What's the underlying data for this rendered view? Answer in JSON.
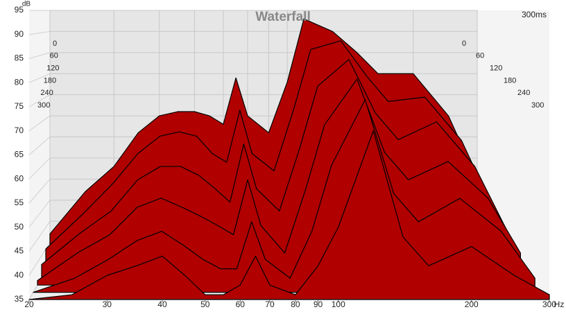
{
  "chart_data": {
    "type": "waterfall",
    "title": "Waterfall",
    "x_label": "Hz",
    "y_label": "dB",
    "time_range_label": "300ms",
    "x": [
      20,
      25,
      30,
      35,
      40,
      45,
      50,
      55,
      60,
      65,
      70,
      80,
      90,
      100,
      120,
      140,
      160,
      200,
      250,
      300
    ],
    "series": [
      {
        "time": 0,
        "color": "#b00000",
        "values": [
          42,
          52,
          58,
          66,
          70,
          71,
          71,
          70,
          68,
          79,
          70,
          66,
          78,
          93,
          90,
          85,
          80,
          80,
          70,
          55
        ]
      },
      {
        "time": 60,
        "color": "#b00000",
        "values": [
          40,
          48,
          55,
          62,
          66,
          67,
          66,
          62,
          60,
          72,
          62,
          58,
          72,
          86,
          88,
          80,
          74,
          75,
          65,
          50
        ]
      },
      {
        "time": 120,
        "color": "#b00000",
        "values": [
          38,
          45,
          50,
          57,
          60,
          60,
          58,
          55,
          52,
          65,
          55,
          50,
          64,
          78,
          84,
          72,
          66,
          70,
          60,
          46
        ]
      },
      {
        "time": 180,
        "color": "#b00000",
        "values": [
          36,
          42,
          46,
          52,
          54,
          52,
          50,
          48,
          46,
          58,
          48,
          42,
          56,
          70,
          80,
          64,
          58,
          62,
          54,
          42
        ]
      },
      {
        "time": 240,
        "color": "#b00000",
        "values": [
          35,
          38,
          42,
          46,
          48,
          45,
          42,
          40,
          40,
          50,
          42,
          38,
          48,
          62,
          76,
          56,
          50,
          55,
          48,
          38
        ]
      },
      {
        "time": 300,
        "color": "#b00000",
        "values": [
          35,
          36,
          40,
          42,
          44,
          40,
          36,
          36,
          38,
          44,
          38,
          36,
          42,
          50,
          70,
          48,
          42,
          46,
          40,
          36
        ]
      }
    ],
    "xlim": [
      20,
      300
    ],
    "xticks": [
      20,
      30,
      40,
      50,
      60,
      70,
      80,
      90,
      100,
      200,
      300
    ],
    "log_x": true,
    "ylim": [
      35,
      95
    ],
    "yticks": [
      35,
      40,
      45,
      50,
      55,
      60,
      65,
      70,
      75,
      80,
      85,
      90,
      95
    ],
    "zlim": [
      0,
      300
    ],
    "zticks": [
      0,
      60,
      120,
      180,
      240,
      300
    ],
    "grid": true
  }
}
